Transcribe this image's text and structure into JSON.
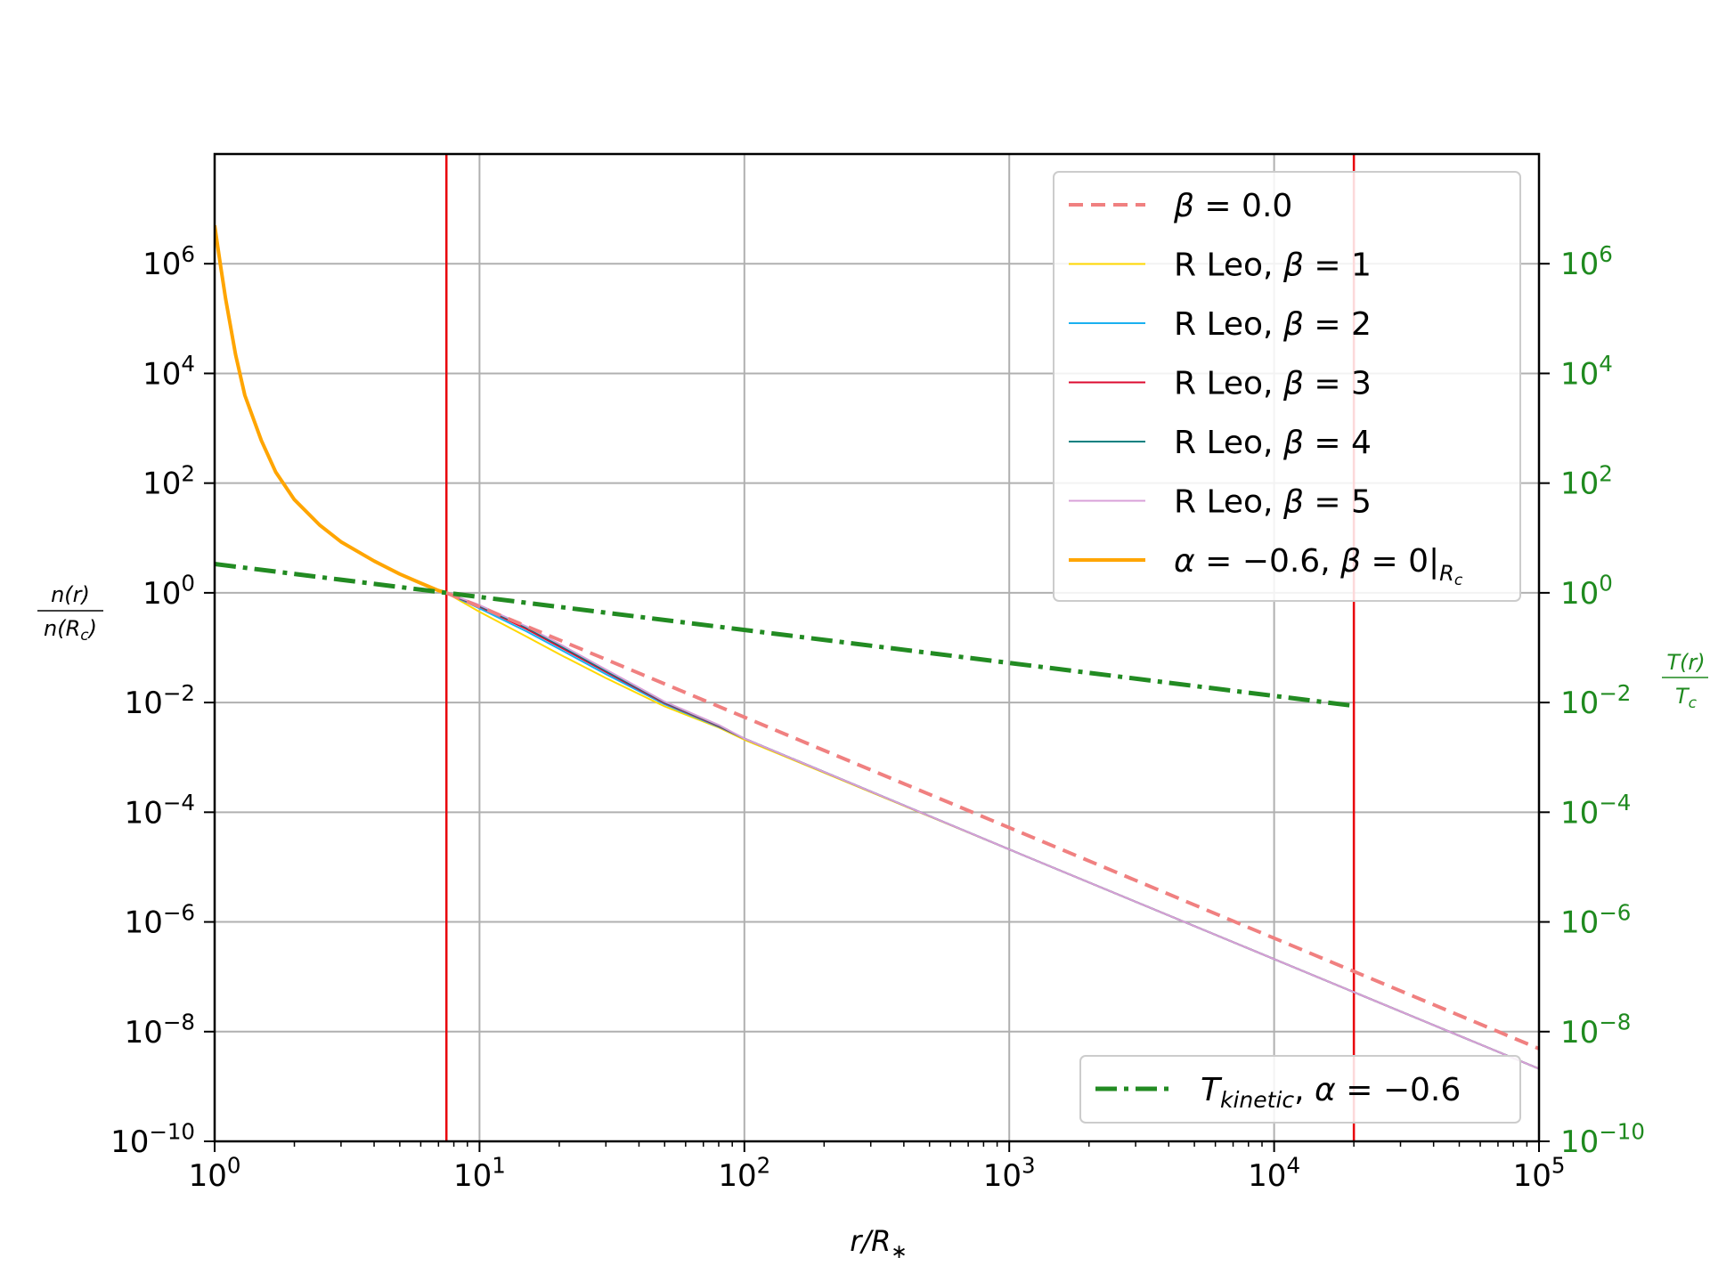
{
  "chart_data": {
    "type": "line",
    "xscale": "log",
    "yscale": "log",
    "xlim": [
      1,
      100000
    ],
    "ylim": [
      1e-10,
      100000000.0
    ],
    "y2lim": [
      1e-10,
      100000000.0
    ],
    "xlabel": "r/R_*",
    "ylabel": "n(r) / n(R_c)",
    "y2label": "T(r) / T_c",
    "grid": true,
    "x_ticks": [
      {
        "value": 1,
        "base": "10",
        "exp": "0"
      },
      {
        "value": 10,
        "base": "10",
        "exp": "1"
      },
      {
        "value": 100,
        "base": "10",
        "exp": "2"
      },
      {
        "value": 1000,
        "base": "10",
        "exp": "3"
      },
      {
        "value": 10000,
        "base": "10",
        "exp": "4"
      },
      {
        "value": 100000,
        "base": "10",
        "exp": "5"
      }
    ],
    "y_ticks": [
      {
        "value": 1e-10,
        "base": "10",
        "exp": "−10"
      },
      {
        "value": 1e-08,
        "base": "10",
        "exp": "−8"
      },
      {
        "value": 1e-06,
        "base": "10",
        "exp": "−6"
      },
      {
        "value": 0.0001,
        "base": "10",
        "exp": "−4"
      },
      {
        "value": 0.01,
        "base": "10",
        "exp": "−2"
      },
      {
        "value": 1,
        "base": "10",
        "exp": "0"
      },
      {
        "value": 100,
        "base": "10",
        "exp": "2"
      },
      {
        "value": 10000,
        "base": "10",
        "exp": "4"
      },
      {
        "value": 1000000,
        "base": "10",
        "exp": "6"
      }
    ],
    "vlines": [
      {
        "x": 7.5,
        "color": "#e8000b"
      },
      {
        "x": 20000,
        "color": "#e8000b"
      }
    ],
    "series": [
      {
        "name": "β = 0.0",
        "color": "#f08080",
        "style": "dashed",
        "width": 4,
        "x": [
          7.5,
          100000
        ],
        "y": [
          1,
          4.9e-09
        ]
      },
      {
        "name": "R Leo, β = 1",
        "color": "#ffd700",
        "style": "solid",
        "width": 2,
        "x": [
          7.5,
          10,
          15,
          20,
          30,
          50,
          80,
          100,
          1000,
          10000,
          100000
        ],
        "y": [
          1,
          0.45,
          0.16,
          0.076,
          0.028,
          0.0085,
          0.0035,
          0.0021,
          2.1e-05,
          2.1e-07,
          2.1e-09
        ]
      },
      {
        "name": "R Leo, β = 2",
        "color": "#1ab0f0",
        "style": "solid",
        "width": 2,
        "x": [
          7.5,
          10,
          15,
          20,
          30,
          50,
          80,
          100,
          1000,
          10000,
          100000
        ],
        "y": [
          1,
          0.52,
          0.2,
          0.095,
          0.033,
          0.0093,
          0.0036,
          0.0022,
          2.1e-05,
          2.1e-07,
          2.1e-09
        ]
      },
      {
        "name": "R Leo, β = 3",
        "color": "#dc0a2f",
        "style": "solid",
        "width": 2,
        "x": [
          7.5,
          10,
          15,
          20,
          30,
          50,
          80,
          100,
          1000,
          10000,
          100000
        ],
        "y": [
          1,
          0.56,
          0.22,
          0.105,
          0.036,
          0.0098,
          0.0037,
          0.0022,
          2.1e-05,
          2.1e-07,
          2.1e-09
        ]
      },
      {
        "name": "R Leo, β = 4",
        "color": "#008080",
        "style": "solid",
        "width": 2,
        "x": [
          7.5,
          10,
          15,
          20,
          30,
          50,
          80,
          100,
          1000,
          10000,
          100000
        ],
        "y": [
          1,
          0.58,
          0.235,
          0.112,
          0.038,
          0.0101,
          0.0038,
          0.0022,
          2.1e-05,
          2.1e-07,
          2.1e-09
        ]
      },
      {
        "name": "R Leo, β = 5",
        "color": "#d8a0d8",
        "style": "solid",
        "width": 2,
        "x": [
          7.5,
          10,
          15,
          20,
          30,
          50,
          80,
          100,
          1000,
          10000,
          100000
        ],
        "y": [
          1,
          0.6,
          0.245,
          0.118,
          0.04,
          0.0104,
          0.0039,
          0.0022,
          2.1e-05,
          2.1e-07,
          2.1e-09
        ]
      },
      {
        "name": "α = −0.6, β = 0|Rc",
        "color": "#ffa500",
        "style": "solid",
        "width": 4,
        "x": [
          1,
          1.05,
          1.1,
          1.2,
          1.3,
          1.5,
          1.7,
          2,
          2.5,
          3,
          4,
          5,
          6,
          7,
          7.5
        ],
        "y": [
          5000000,
          1000000,
          230000,
          22000,
          4000,
          600,
          160,
          50,
          17,
          8.5,
          3.8,
          2.2,
          1.5,
          1.1,
          1
        ]
      }
    ],
    "secondary_series": [
      {
        "name": "T_kinetic, α = −0.6",
        "color": "#228b22",
        "style": "dashdot",
        "width": 5,
        "x": [
          1,
          20000
        ],
        "y": [
          3.35,
          0.0087
        ]
      }
    ],
    "legend_upper": {
      "placement": "upper-right",
      "entries": [
        {
          "key": "β = 0.0",
          "prefix": "",
          "color": "#f08080",
          "style": "dashed",
          "width": 4
        },
        {
          "key": "R Leo, β = 1",
          "prefix": "R Leo, ",
          "color": "#ffd700",
          "style": "solid",
          "width": 2
        },
        {
          "key": "R Leo, β = 2",
          "prefix": "R Leo, ",
          "color": "#1ab0f0",
          "style": "solid",
          "width": 2
        },
        {
          "key": "R Leo, β = 3",
          "prefix": "R Leo, ",
          "color": "#dc0a2f",
          "style": "solid",
          "width": 2
        },
        {
          "key": "R Leo, β = 4",
          "prefix": "R Leo, ",
          "color": "#008080",
          "style": "solid",
          "width": 2
        },
        {
          "key": "R Leo, β = 5",
          "prefix": "R Leo, ",
          "color": "#d8a0d8",
          "style": "solid",
          "width": 2
        },
        {
          "key": "α = −0.6, β = 0|Rc",
          "prefix": "",
          "color": "#ffa500",
          "style": "solid",
          "width": 4
        }
      ]
    },
    "legend_lower": {
      "placement": "lower-right",
      "entries": [
        {
          "key": "T_kinetic, α = −0.6",
          "prefix": "",
          "color": "#228b22",
          "style": "dashdot",
          "width": 5
        }
      ]
    }
  }
}
